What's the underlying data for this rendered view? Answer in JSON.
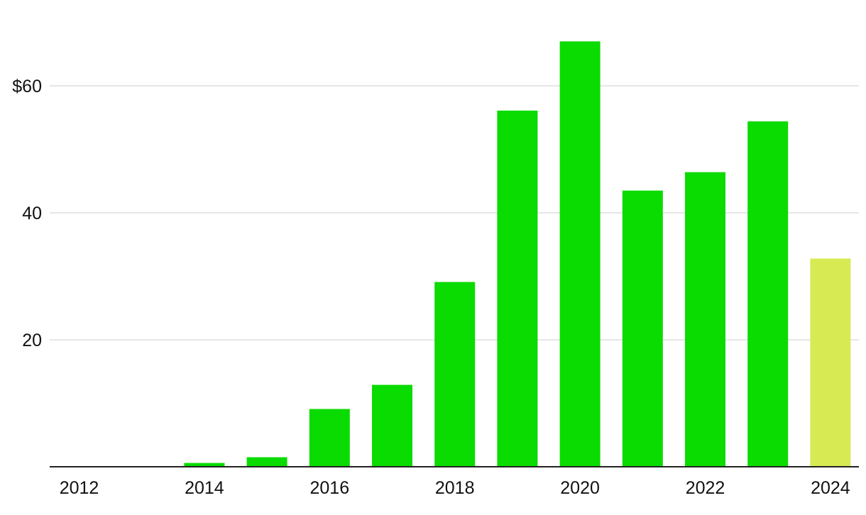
{
  "chart_data": {
    "type": "bar",
    "title": "",
    "xlabel": "",
    "ylabel": "",
    "categories": [
      "2012",
      "2013",
      "2014",
      "2015",
      "2016",
      "2017",
      "2018",
      "2019",
      "2020",
      "2021",
      "2022",
      "2023",
      "2024"
    ],
    "values": [
      0,
      0,
      0.6,
      1.5,
      9.1,
      12.9,
      29.1,
      56.1,
      67.0,
      43.5,
      46.4,
      54.4,
      32.8
    ],
    "x_tick_labels": [
      "2012",
      "2014",
      "2016",
      "2018",
      "2020",
      "2022",
      "2024"
    ],
    "y_ticks": [
      20,
      40,
      60
    ],
    "y_tick_labels": [
      "20",
      "40",
      "$60"
    ],
    "ylim": [
      0,
      70
    ],
    "grid": true,
    "colors": {
      "bar": "#0adb00",
      "highlight_bar": "#d7ea54",
      "gridline": "#dddddd",
      "baseline": "#222222",
      "text": "#111111"
    },
    "highlight_category": "2024"
  }
}
